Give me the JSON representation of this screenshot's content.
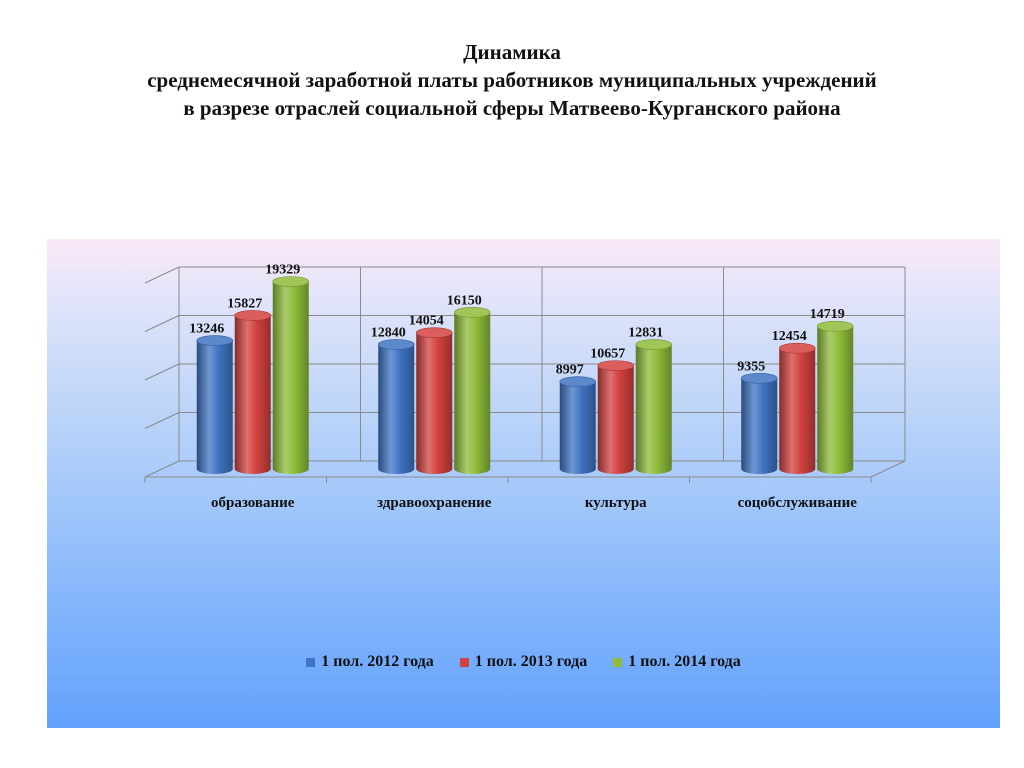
{
  "title": {
    "line1": "Динамика",
    "line2": "среднемесячной заработной платы работников  муниципальных учреждений",
    "line3": "в разрезе отраслей социальной сферы  Матвеево-Курганского района"
  },
  "chart_data": {
    "type": "bar",
    "style": "3d-cylinder",
    "categories": [
      "образование",
      "здравоохранение",
      "культура",
      "соцобслуживание"
    ],
    "series": [
      {
        "name": "1 пол. 2012 года",
        "color": "#3f74c3",
        "values": [
          13246,
          12840,
          8997,
          9355
        ]
      },
      {
        "name": "1 пол. 2013 года",
        "color": "#d2423f",
        "values": [
          15827,
          14054,
          10657,
          12454
        ]
      },
      {
        "name": "1 пол. 2014 года",
        "color": "#8fbc3a",
        "values": [
          19329,
          16150,
          12831,
          14719
        ]
      }
    ],
    "ylim": [
      0,
      20000
    ],
    "grid": true,
    "legend_position": "bottom",
    "data_labels": true
  }
}
